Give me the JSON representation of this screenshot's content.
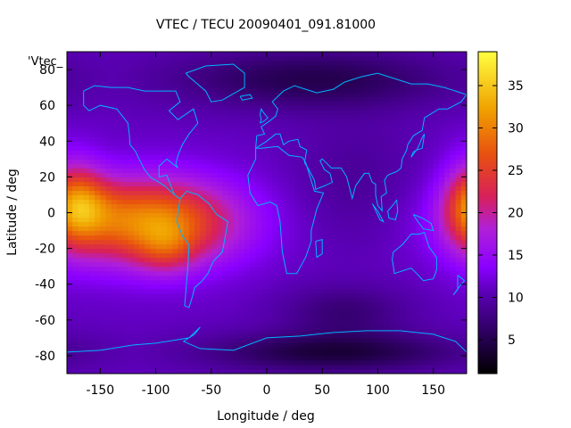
{
  "chart_data": {
    "type": "heatmap",
    "title": "VTEC / TECU 20090401_091.81000",
    "xlabel": "Longitude / deg",
    "ylabel": "Latitude / deg",
    "key_label": "'Vtec_",
    "xlim": [
      -180,
      180
    ],
    "ylim": [
      -90,
      90
    ],
    "x_ticks": [
      -150,
      -100,
      -50,
      0,
      50,
      100,
      150
    ],
    "y_ticks": [
      -80,
      -60,
      -40,
      -20,
      0,
      20,
      40,
      60,
      80
    ],
    "colorbar": {
      "range": [
        1,
        39
      ],
      "ticks": [
        5,
        10,
        15,
        20,
        25,
        30,
        35
      ]
    },
    "grid": false,
    "overlay": "coastlines",
    "field_features": [
      {
        "lon": -105,
        "lat": -5,
        "sigma_lon": 55,
        "sigma_lat": 17,
        "value": 20
      },
      {
        "lon": -165,
        "lat": 5,
        "sigma_lon": 20,
        "sigma_lat": 12,
        "value": 6
      },
      {
        "lon": -90,
        "lat": -20,
        "sigma_lon": 18,
        "sigma_lat": 10,
        "value": 5
      },
      {
        "lon": 185,
        "lat": 5,
        "sigma_lon": 18,
        "sigma_lat": 18,
        "value": 10
      },
      {
        "lon": 40,
        "lat": 75,
        "sigma_lon": 90,
        "sigma_lat": 12,
        "value": -6
      },
      {
        "lon": 60,
        "lat": -78,
        "sigma_lon": 80,
        "sigma_lat": 8,
        "value": -7
      },
      {
        "lon": 70,
        "lat": -55,
        "sigma_lon": 40,
        "sigma_lat": 10,
        "value": -4
      },
      {
        "lon": 80,
        "lat": 20,
        "sigma_lon": 40,
        "sigma_lat": 25,
        "value": -2
      }
    ],
    "field_base": 11,
    "colors": {
      "stops": [
        [
          "#000000",
          0.0
        ],
        [
          "#2a005a",
          0.12
        ],
        [
          "#5a00b4",
          0.25
        ],
        [
          "#8a00ff",
          0.33
        ],
        [
          "#b020d8",
          0.45
        ],
        [
          "#d8205a",
          0.55
        ],
        [
          "#e85010",
          0.68
        ],
        [
          "#f0a000",
          0.82
        ],
        [
          "#ffff40",
          1.0
        ]
      ],
      "coastline": "#00b4ff"
    }
  }
}
